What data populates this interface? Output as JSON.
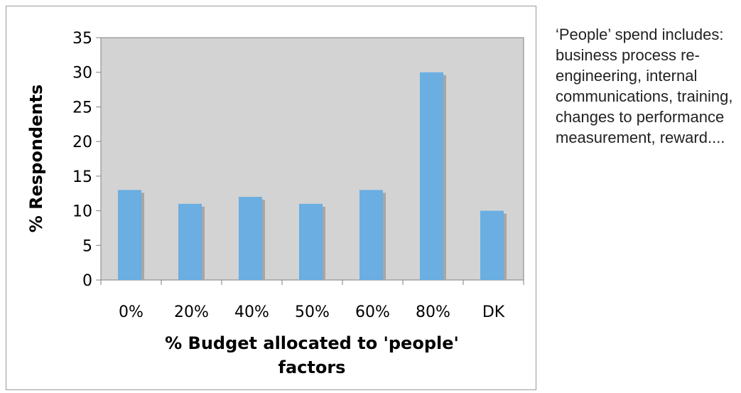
{
  "chart_data": {
    "type": "bar",
    "categories": [
      "0%",
      "20%",
      "40%",
      "50%",
      "60%",
      "80%",
      "DK"
    ],
    "values": [
      13,
      11,
      12,
      11,
      13,
      30,
      10
    ],
    "xlabel_lines": [
      "% Budget allocated to 'people'",
      "factors"
    ],
    "ylabel": "% Respondents",
    "ylim": [
      0,
      35
    ],
    "yticks": [
      0,
      5,
      10,
      15,
      20,
      25,
      30,
      35
    ],
    "grid": false,
    "legend": "none",
    "colors": {
      "bar": "#6aaee2",
      "bar_shadow": "#a6a6a6",
      "plot_background": "#d3d3d3",
      "plot_border": "#808080"
    }
  },
  "side_note": "‘People’ spend includes: business process re-engineering, internal communications, training, changes to performance measurement, reward...."
}
